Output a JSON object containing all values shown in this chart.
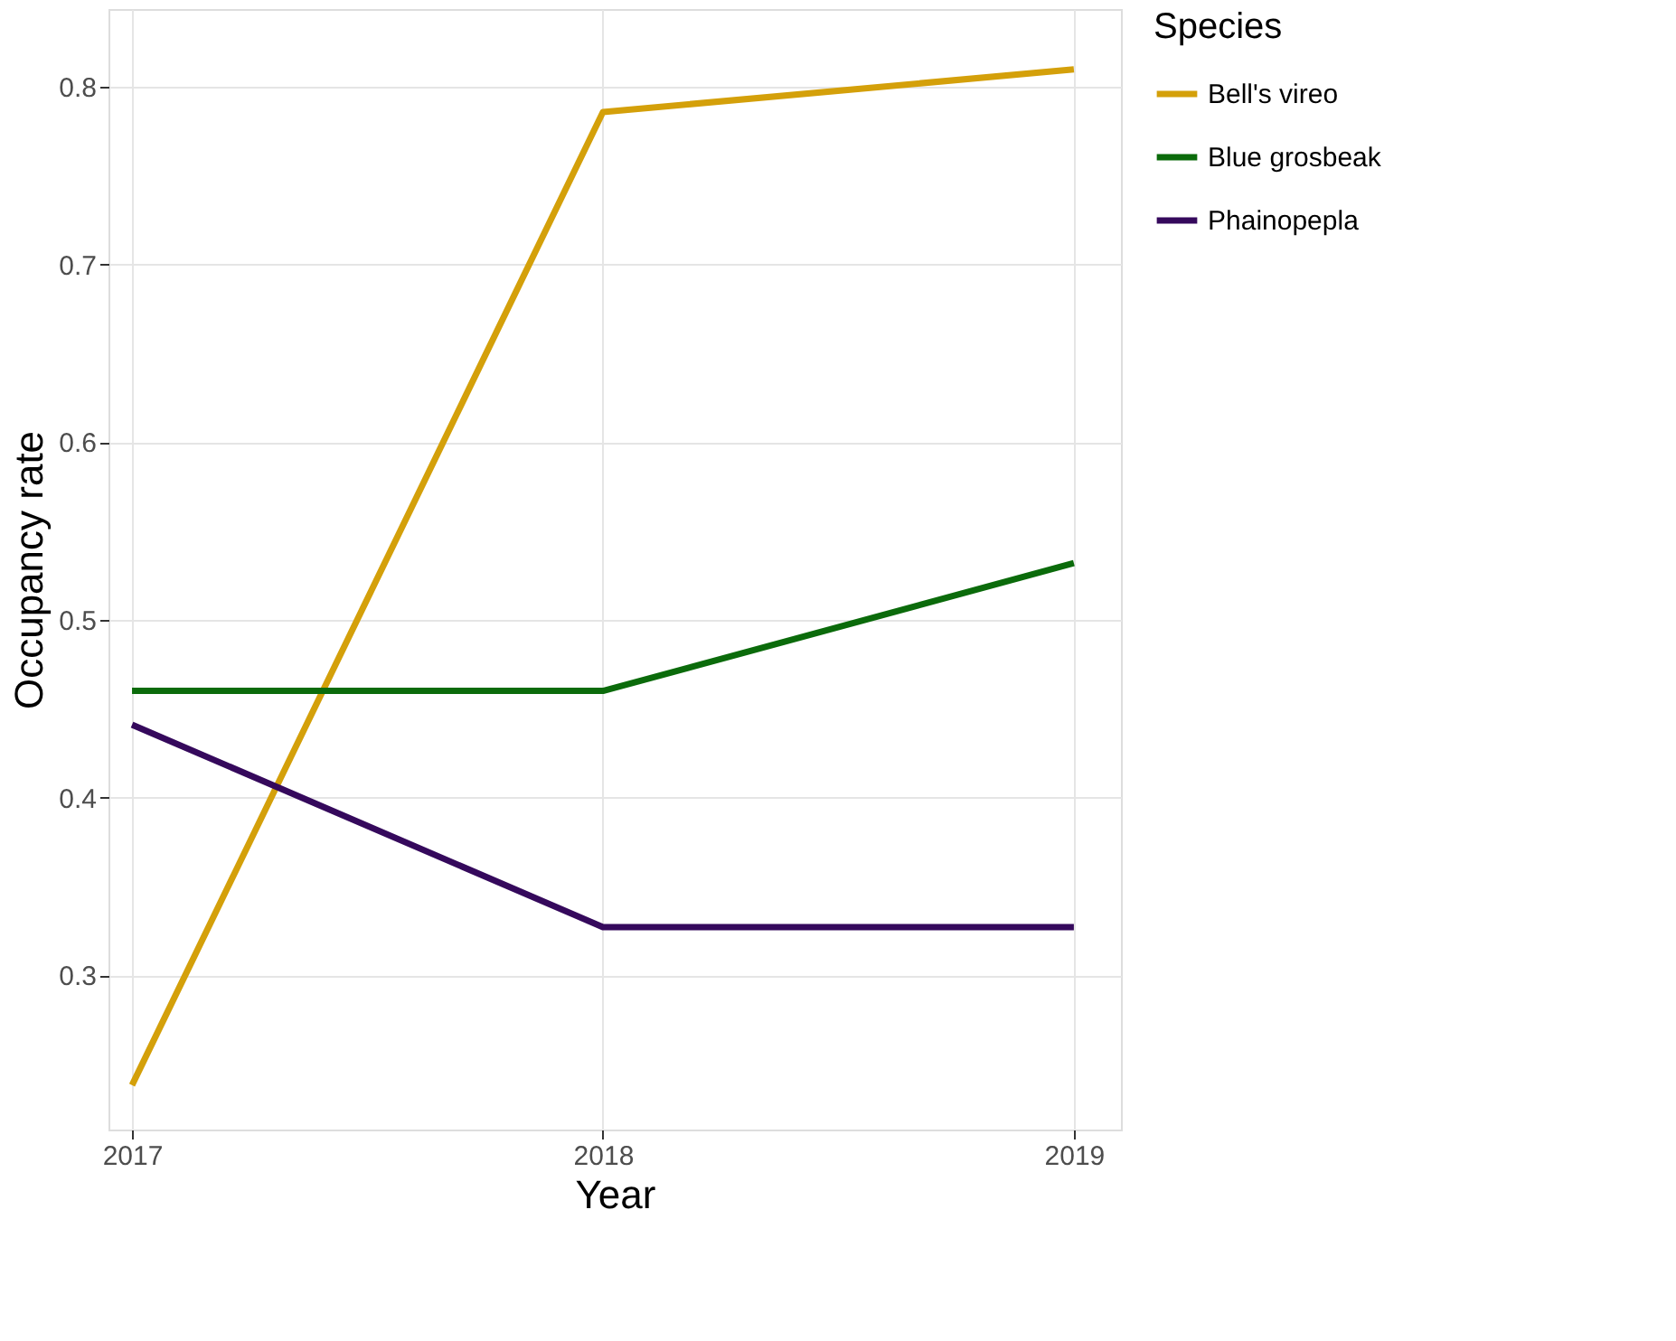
{
  "chart_data": {
    "type": "line",
    "xlabel": "Year",
    "ylabel": "Occupancy rate",
    "legend_title": "Species",
    "x": [
      2017,
      2018,
      2019
    ],
    "series": [
      {
        "name": "Bell's vireo",
        "color": "#d4a00a",
        "values": [
          0.238,
          0.786,
          0.81
        ]
      },
      {
        "name": "Blue grosbeak",
        "color": "#0b6b0b",
        "values": [
          0.46,
          0.46,
          0.532
        ]
      },
      {
        "name": "Phainopepla",
        "color": "#35095c",
        "values": [
          0.441,
          0.327,
          0.327
        ]
      }
    ],
    "xlim": [
      2016.95,
      2019.1
    ],
    "xticks": [
      2017,
      2018,
      2019
    ],
    "ylim": [
      0.213,
      0.844
    ],
    "yticks": [
      0.3,
      0.4,
      0.5,
      0.6,
      0.7,
      0.8
    ],
    "grid": true,
    "legend": "right",
    "marker": "none",
    "line_style": "solid"
  }
}
